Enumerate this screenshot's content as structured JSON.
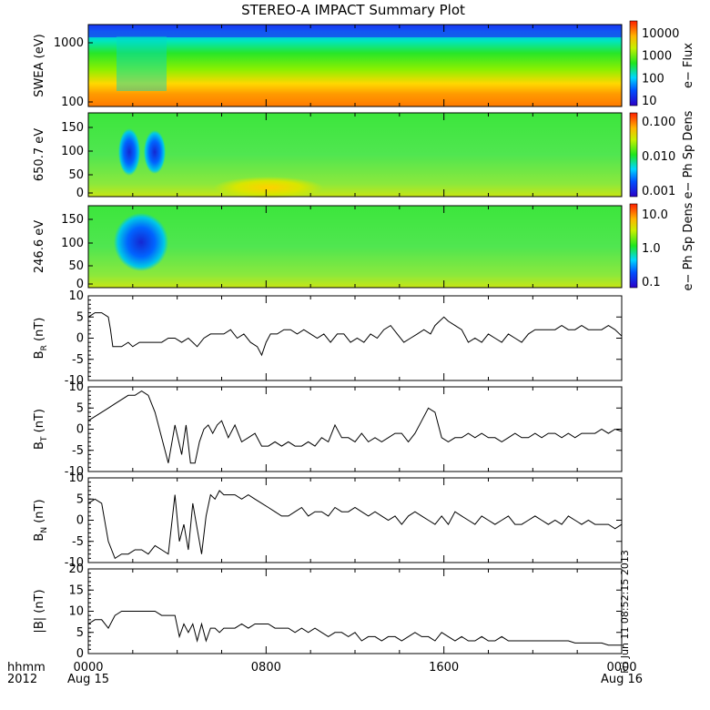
{
  "chart_data": {
    "type": "line",
    "title": "STEREO-A IMPACT Summary Plot",
    "x_axis": {
      "ticks": [
        {
          "label": "0000",
          "sub": "Aug 15",
          "hours": 0
        },
        {
          "label": "0800",
          "sub": "",
          "hours": 8
        },
        {
          "label": "1600",
          "sub": "",
          "hours": 16
        },
        {
          "label": "0000",
          "sub": "Aug 16",
          "hours": 24
        }
      ],
      "range_hours": [
        0,
        24
      ],
      "corner_label_1": "hhmm",
      "corner_label_2": "2012"
    },
    "spectrograms": [
      {
        "ylabel": "SWEA (eV)",
        "yscale": "log",
        "yticks": [
          "1000",
          "100"
        ],
        "colorbar_label": "e− Flux",
        "colorbar_ticks": [
          "10000",
          "1000",
          "100",
          "10"
        ]
      },
      {
        "ylabel": "650.7 eV",
        "yscale": "linear",
        "ylim": [
          0,
          180
        ],
        "yticks": [
          "150",
          "100",
          "50",
          "0"
        ],
        "colorbar_label": "e− Ph Sp Dens",
        "colorbar_ticks": [
          "0.100",
          "0.010",
          "0.001"
        ]
      },
      {
        "ylabel": "246.6 eV",
        "yscale": "linear",
        "ylim": [
          0,
          180
        ],
        "yticks": [
          "150",
          "100",
          "50",
          "0"
        ],
        "colorbar_label": "e− Ph Sp Dens",
        "colorbar_ticks": [
          "10.0",
          "1.0",
          "0.1"
        ]
      }
    ],
    "series": [
      {
        "name": "B_R",
        "ylabel_main": "B",
        "ylabel_sub": "R",
        "ylabel_unit": " (nT)",
        "ylim": [
          -10,
          10
        ],
        "yticks": [
          "10",
          "5",
          "0",
          "-5",
          "-10"
        ],
        "x": [
          0,
          0.3,
          0.6,
          0.9,
          1.0,
          1.1,
          1.2,
          1.5,
          1.8,
          2.0,
          2.3,
          2.6,
          3.0,
          3.3,
          3.6,
          3.9,
          4.2,
          4.5,
          4.7,
          4.9,
          5.2,
          5.5,
          5.8,
          6.1,
          6.4,
          6.7,
          7.0,
          7.3,
          7.6,
          7.8,
          8.0,
          8.2,
          8.5,
          8.8,
          9.1,
          9.4,
          9.7,
          10.0,
          10.3,
          10.6,
          10.9,
          11.2,
          11.5,
          11.8,
          12.1,
          12.4,
          12.7,
          13.0,
          13.3,
          13.6,
          13.9,
          14.2,
          14.5,
          14.8,
          15.1,
          15.4,
          15.6,
          15.8,
          16.0,
          16.2,
          16.5,
          16.8,
          17.1,
          17.4,
          17.7,
          18.0,
          18.3,
          18.6,
          18.9,
          19.2,
          19.5,
          19.8,
          20.1,
          20.4,
          20.7,
          21.0,
          21.3,
          21.6,
          21.9,
          22.2,
          22.5,
          22.8,
          23.1,
          23.4,
          23.7,
          24.0
        ],
        "y": [
          5,
          6,
          6,
          5,
          2,
          -2,
          -2,
          -2,
          -1,
          -2,
          -1,
          -1,
          -1,
          -1,
          0,
          0,
          -1,
          0,
          -1,
          -2,
          0,
          1,
          1,
          1,
          2,
          0,
          1,
          -1,
          -2,
          -4,
          -1,
          1,
          1,
          2,
          2,
          1,
          2,
          1,
          0,
          1,
          -1,
          1,
          1,
          -1,
          0,
          -1,
          1,
          0,
          2,
          3,
          1,
          -1,
          0,
          1,
          2,
          1,
          3,
          4,
          5,
          4,
          3,
          2,
          -1,
          0,
          -1,
          1,
          0,
          -1,
          1,
          0,
          -1,
          1,
          2,
          2,
          2,
          2,
          3,
          2,
          2,
          3,
          2,
          2,
          2,
          3,
          2,
          0.5
        ]
      },
      {
        "name": "B_T",
        "ylabel_main": "B",
        "ylabel_sub": "T",
        "ylabel_unit": " (nT)",
        "ylim": [
          -10,
          10
        ],
        "yticks": [
          "10",
          "5",
          "0",
          "-5",
          "-10"
        ],
        "x": [
          0,
          0.3,
          0.6,
          0.9,
          1.2,
          1.5,
          1.8,
          2.1,
          2.4,
          2.7,
          3.0,
          3.3,
          3.6,
          3.9,
          4.2,
          4.4,
          4.6,
          4.8,
          5.0,
          5.2,
          5.4,
          5.6,
          5.8,
          6.0,
          6.3,
          6.6,
          6.9,
          7.2,
          7.5,
          7.8,
          8.1,
          8.4,
          8.7,
          9.0,
          9.3,
          9.6,
          9.9,
          10.2,
          10.5,
          10.8,
          11.1,
          11.4,
          11.7,
          12.0,
          12.3,
          12.6,
          12.9,
          13.2,
          13.5,
          13.8,
          14.1,
          14.4,
          14.7,
          15.0,
          15.3,
          15.6,
          15.9,
          16.2,
          16.5,
          16.8,
          17.1,
          17.4,
          17.7,
          18.0,
          18.3,
          18.6,
          18.9,
          19.2,
          19.5,
          19.8,
          20.1,
          20.4,
          20.7,
          21.0,
          21.3,
          21.6,
          21.9,
          22.2,
          22.5,
          22.8,
          23.1,
          23.4,
          23.7,
          24.0
        ],
        "y": [
          2,
          3,
          4,
          5,
          6,
          7,
          8,
          8,
          9,
          8,
          4,
          -2,
          -8,
          1,
          -6,
          1,
          -8,
          -8,
          -3,
          0,
          1,
          -1,
          1,
          2,
          -2,
          1,
          -3,
          -2,
          -1,
          -4,
          -4,
          -3,
          -4,
          -3,
          -4,
          -4,
          -3,
          -4,
          -2,
          -3,
          1,
          -2,
          -2,
          -3,
          -1,
          -3,
          -2,
          -3,
          -2,
          -1,
          -1,
          -3,
          -1,
          2,
          5,
          4,
          -2,
          -3,
          -2,
          -2,
          -1,
          -2,
          -1,
          -2,
          -2,
          -3,
          -2,
          -1,
          -2,
          -2,
          -1,
          -2,
          -1,
          -1,
          -2,
          -1,
          -2,
          -1,
          -1,
          -1,
          0,
          -1,
          0,
          -0.5
        ]
      },
      {
        "name": "B_N",
        "ylabel_main": "B",
        "ylabel_sub": "N",
        "ylabel_unit": " (nT)",
        "ylim": [
          -10,
          10
        ],
        "yticks": [
          "10",
          "5",
          "0",
          "-5",
          "-10"
        ],
        "x": [
          0,
          0.3,
          0.6,
          0.9,
          1.2,
          1.5,
          1.8,
          2.1,
          2.4,
          2.7,
          3.0,
          3.3,
          3.6,
          3.9,
          4.1,
          4.3,
          4.5,
          4.7,
          4.9,
          5.1,
          5.3,
          5.5,
          5.7,
          5.9,
          6.1,
          6.3,
          6.6,
          6.9,
          7.2,
          7.5,
          7.8,
          8.1,
          8.4,
          8.7,
          9.0,
          9.3,
          9.6,
          9.9,
          10.2,
          10.5,
          10.8,
          11.1,
          11.4,
          11.7,
          12.0,
          12.3,
          12.6,
          12.9,
          13.2,
          13.5,
          13.8,
          14.1,
          14.4,
          14.7,
          15.0,
          15.3,
          15.6,
          15.9,
          16.2,
          16.5,
          16.8,
          17.1,
          17.4,
          17.7,
          18.0,
          18.3,
          18.6,
          18.9,
          19.2,
          19.5,
          19.8,
          20.1,
          20.4,
          20.7,
          21.0,
          21.3,
          21.6,
          21.9,
          22.2,
          22.5,
          22.8,
          23.1,
          23.4,
          23.7,
          24.0
        ],
        "y": [
          4,
          5,
          4,
          -5,
          -9,
          -8,
          -8,
          -7,
          -7,
          -8,
          -6,
          -7,
          -8,
          6,
          -5,
          -1,
          -7,
          4,
          -2,
          -8,
          1,
          6,
          5,
          7,
          6,
          6,
          6,
          5,
          6,
          5,
          4,
          3,
          2,
          1,
          1,
          2,
          3,
          1,
          2,
          2,
          1,
          3,
          2,
          2,
          3,
          2,
          1,
          2,
          1,
          0,
          1,
          -1,
          1,
          2,
          1,
          0,
          -1,
          1,
          -1,
          2,
          1,
          0,
          -1,
          1,
          0,
          -1,
          0,
          1,
          -1,
          -1,
          0,
          1,
          0,
          -1,
          0,
          -1,
          1,
          0,
          -1,
          0,
          -1,
          -1,
          -1,
          -2,
          -1
        ]
      },
      {
        "name": "|B|",
        "ylabel_main": "|B| (nT)",
        "ylabel_sub": "",
        "ylabel_unit": "",
        "ylim": [
          0,
          20
        ],
        "yticks": [
          "20",
          "15",
          "10",
          "5",
          "0"
        ],
        "x": [
          0,
          0.3,
          0.6,
          0.9,
          1.2,
          1.5,
          1.8,
          2.1,
          2.4,
          2.7,
          3.0,
          3.3,
          3.6,
          3.9,
          4.1,
          4.3,
          4.5,
          4.7,
          4.9,
          5.1,
          5.3,
          5.5,
          5.7,
          5.9,
          6.1,
          6.3,
          6.6,
          6.9,
          7.2,
          7.5,
          7.8,
          8.1,
          8.4,
          8.7,
          9.0,
          9.3,
          9.6,
          9.9,
          10.2,
          10.5,
          10.8,
          11.1,
          11.4,
          11.7,
          12.0,
          12.3,
          12.6,
          12.9,
          13.2,
          13.5,
          13.8,
          14.1,
          14.4,
          14.7,
          15.0,
          15.3,
          15.6,
          15.9,
          16.2,
          16.5,
          16.8,
          17.1,
          17.4,
          17.7,
          18.0,
          18.3,
          18.6,
          18.9,
          19.2,
          19.5,
          19.8,
          20.1,
          20.4,
          20.7,
          21.0,
          21.3,
          21.6,
          21.9,
          22.2,
          22.5,
          22.8,
          23.1,
          23.4,
          23.7,
          24.0
        ],
        "y": [
          7,
          8,
          8,
          6,
          9,
          10,
          10,
          10,
          10,
          10,
          10,
          9,
          9,
          9,
          4,
          7,
          5,
          7,
          3,
          7,
          3,
          6,
          6,
          5,
          6,
          6,
          6,
          7,
          6,
          7,
          7,
          7,
          6,
          6,
          6,
          5,
          6,
          5,
          6,
          5,
          4,
          5,
          5,
          4,
          5,
          3,
          4,
          4,
          3,
          4,
          4,
          3,
          4,
          5,
          4,
          4,
          3,
          5,
          4,
          3,
          4,
          3,
          3,
          4,
          3,
          3,
          4,
          3,
          3,
          3,
          3,
          3,
          3,
          3,
          3,
          3,
          3,
          2.5,
          2.5,
          2.5,
          2.5,
          2.5,
          2,
          2,
          2
        ]
      }
    ],
    "side_annotation": "Fri Jun 11 08:52:15 2013"
  }
}
